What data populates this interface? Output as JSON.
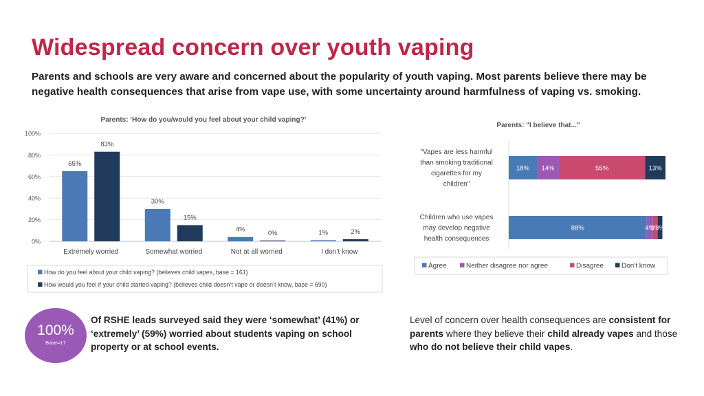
{
  "title": "Widespread concern over youth vaping",
  "subtitle": "Parents and schools are very aware and concerned about the popularity of youth vaping. Most parents believe there may be negative health consequences that arise from vape use, with some uncertainty around harmfulness of vaping vs. smoking.",
  "colors": {
    "title": "#c0254a",
    "blue": "#4a7ab5",
    "navy": "#1f3a5a",
    "purple": "#9b59b6",
    "pink": "#c94a6e"
  },
  "chart_data": [
    {
      "type": "bar",
      "title": "Parents: ‘How do you/would you feel about your child vaping?’",
      "categories": [
        "Extremely worried",
        "Somewhat worried",
        "Not at all worried",
        "I don’t know"
      ],
      "series": [
        {
          "name": "How do you feel about your child vaping? (believes child vapes, base = 161)",
          "values": [
            65,
            30,
            4,
            1
          ],
          "labels": [
            "65%",
            "30%",
            "4%",
            "1%"
          ]
        },
        {
          "name": "How would you feel if your child started vaping? (believes child doesn’t vape or doesn’t know, base = 690)",
          "values": [
            83,
            15,
            0,
            2
          ],
          "labels": [
            "83%",
            "15%",
            "0%",
            "2%"
          ]
        }
      ],
      "ylim": [
        0,
        100
      ],
      "yticks": [
        "0%",
        "20%",
        "40%",
        "60%",
        "80%",
        "100%"
      ],
      "grid": true,
      "legend": "bottom"
    },
    {
      "type": "bar",
      "orientation": "horizontal-stacked",
      "title": "Parents: \"I believe that...\"",
      "categories": [
        [
          "\"Vapes are less harmful",
          "than smoking traditional",
          "cigarettes for my",
          "children\""
        ],
        [
          "Children who use vapes",
          "may develop negative",
          "health consequences"
        ]
      ],
      "series": [
        {
          "name": "Agree",
          "values": [
            18,
            88
          ],
          "labels": [
            "18%",
            "88%"
          ]
        },
        {
          "name": "Neither disagree nor agree",
          "values": [
            14,
            4
          ],
          "labels": [
            "14%",
            "4%"
          ]
        },
        {
          "name": "Disagree",
          "values": [
            55,
            3
          ],
          "labels": [
            "55%",
            "3%"
          ]
        },
        {
          "name": "Don't know",
          "values": [
            13,
            3
          ],
          "labels": [
            "13%",
            "3%"
          ]
        }
      ],
      "xlim": [
        0,
        100
      ],
      "legend": "bottom"
    }
  ],
  "stat": {
    "value": "100%",
    "base": "Base=17"
  },
  "note_left": "Of RSHE leads surveyed said they were ‘somewhat’ (41%) or ‘extremely’ (59%) worried about students vaping on school property or at school events.",
  "note_right": {
    "t1": "Level of concern over health consequences are ",
    "b1": "consistent for parents",
    "t2": " where they believe their ",
    "b2": "child already vapes",
    "t3": " and those ",
    "b3": "who do not believe their child vapes",
    "t4": "."
  }
}
